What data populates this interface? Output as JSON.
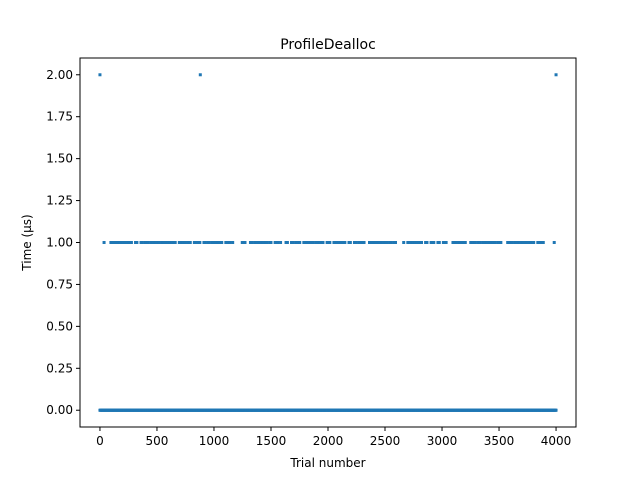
{
  "chart_data": {
    "type": "scatter",
    "title": "ProfileDealloc",
    "xlabel": "Trial number",
    "ylabel": "Time (μs)",
    "xlim": [
      -175,
      4175
    ],
    "ylim": [
      -0.1,
      2.1
    ],
    "xticks": [
      0,
      500,
      1000,
      1500,
      2000,
      2500,
      3000,
      3500,
      4000
    ],
    "yticks": [
      0.0,
      0.25,
      0.5,
      0.75,
      1.0,
      1.25,
      1.5,
      1.75,
      2.0
    ],
    "xtick_labels": [
      "0",
      "500",
      "1000",
      "1500",
      "2000",
      "2500",
      "3000",
      "3500",
      "4000"
    ],
    "ytick_labels": [
      "0.00",
      "0.25",
      "0.50",
      "0.75",
      "1.00",
      "1.25",
      "1.50",
      "1.75",
      "2.00"
    ],
    "grid": false,
    "marker_color": "#1f77b4",
    "series": [
      {
        "x_range": [
          0,
          4000
        ],
        "y": 0.0,
        "density": "dense"
      },
      {
        "x_range": [
          0,
          4000
        ],
        "y": 1.0,
        "density": "sparse",
        "gaps": [
          [
            1180,
            1230
          ],
          [
            3920,
            3960
          ]
        ]
      },
      {
        "x": [
          0,
          880,
          4000
        ],
        "y": [
          2.0,
          2.0,
          2.0
        ]
      }
    ]
  }
}
